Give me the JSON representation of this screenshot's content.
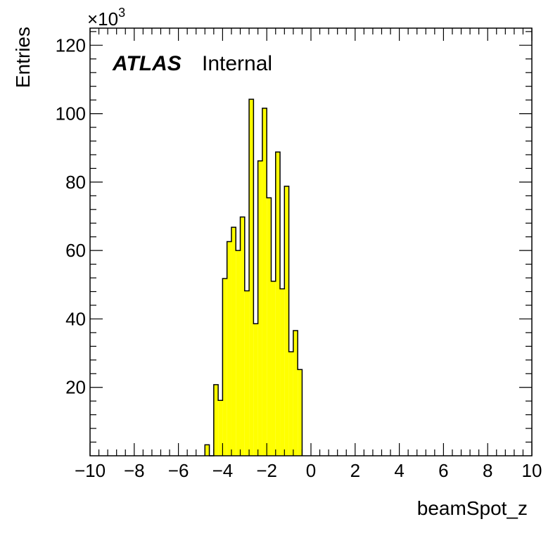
{
  "chart_data": {
    "type": "bar",
    "xlabel": "beamSpot_z",
    "ylabel": "Entries",
    "y_exponent_label": "×10",
    "y_exponent_power": "3",
    "xlim": [
      -10,
      10
    ],
    "ylim": [
      0,
      125
    ],
    "x_ticks": [
      "−10",
      "−8",
      "−6",
      "−4",
      "−2",
      "0",
      "2",
      "4",
      "6",
      "8",
      "10"
    ],
    "y_ticks": [
      "20",
      "40",
      "60",
      "80",
      "100",
      "120"
    ],
    "annotation": {
      "bold": "ATLAS",
      "normal": "Internal"
    },
    "fill_color": "#ffff00",
    "line_color": "#000000",
    "bins": [
      {
        "x0": -4.8,
        "x1": -4.6,
        "value": 3.2
      },
      {
        "x0": -4.6,
        "x1": -4.4,
        "value": 0
      },
      {
        "x0": -4.4,
        "x1": -4.2,
        "value": 20.8
      },
      {
        "x0": -4.2,
        "x1": -4.0,
        "value": 16.2
      },
      {
        "x0": -4.0,
        "x1": -3.8,
        "value": 51.8
      },
      {
        "x0": -3.8,
        "x1": -3.6,
        "value": 62.6
      },
      {
        "x0": -3.6,
        "x1": -3.4,
        "value": 66.8
      },
      {
        "x0": -3.4,
        "x1": -3.2,
        "value": 60.0
      },
      {
        "x0": -3.2,
        "x1": -3.0,
        "value": 69.8
      },
      {
        "x0": -3.0,
        "x1": -2.8,
        "value": 48.2
      },
      {
        "x0": -2.8,
        "x1": -2.6,
        "value": 104.2
      },
      {
        "x0": -2.6,
        "x1": -2.4,
        "value": 38.6
      },
      {
        "x0": -2.4,
        "x1": -2.2,
        "value": 86.2
      },
      {
        "x0": -2.2,
        "x1": -2.0,
        "value": 101.6
      },
      {
        "x0": -2.0,
        "x1": -1.8,
        "value": 75.4
      },
      {
        "x0": -1.8,
        "x1": -1.6,
        "value": 51.0
      },
      {
        "x0": -1.6,
        "x1": -1.4,
        "value": 88.8
      },
      {
        "x0": -1.4,
        "x1": -1.2,
        "value": 48.8
      },
      {
        "x0": -1.2,
        "x1": -1.0,
        "value": 78.8
      },
      {
        "x0": -1.0,
        "x1": -0.8,
        "value": 30.4
      },
      {
        "x0": -0.8,
        "x1": -0.6,
        "value": 36.6
      },
      {
        "x0": -0.6,
        "x1": -0.4,
        "value": 25.2
      }
    ]
  }
}
